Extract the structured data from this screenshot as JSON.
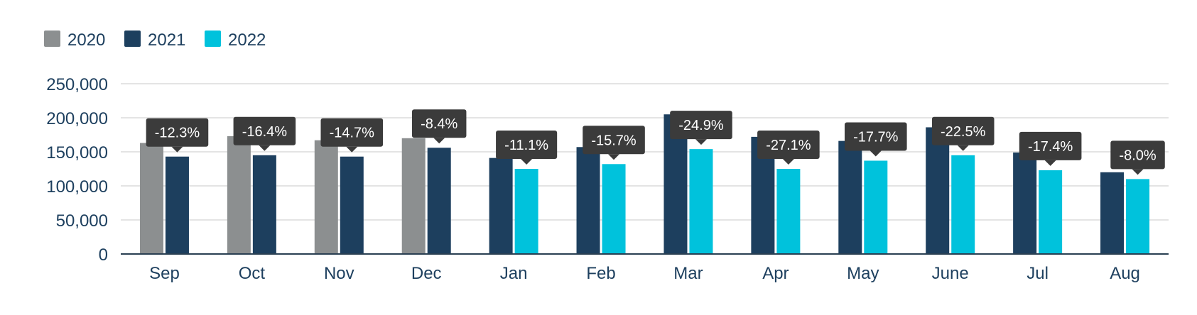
{
  "chart_data": {
    "type": "bar",
    "categories": [
      "Sep",
      "Oct",
      "Nov",
      "Dec",
      "Jan",
      "Feb",
      "Mar",
      "Apr",
      "May",
      "June",
      "Jul",
      "Aug"
    ],
    "series": [
      {
        "name": "2020",
        "color": "#8c8f90",
        "values": [
          163000,
          173000,
          167000,
          170000,
          null,
          null,
          null,
          null,
          null,
          null,
          null,
          null
        ]
      },
      {
        "name": "2021",
        "color": "#1d3f5e",
        "values": [
          143000,
          145000,
          143000,
          156000,
          141000,
          157000,
          205000,
          172000,
          166000,
          186000,
          149000,
          120000
        ]
      },
      {
        "name": "2022",
        "color": "#00c2dc",
        "values": [
          null,
          null,
          null,
          null,
          125000,
          132000,
          154000,
          125000,
          137000,
          145000,
          123000,
          110000
        ]
      }
    ],
    "annotations": [
      "-12.3%",
      "-16.4%",
      "-14.7%",
      "-8.4%",
      "-11.1%",
      "-15.7%",
      "-24.9%",
      "-27.1%",
      "-17.7%",
      "-22.5%",
      "-17.4%",
      "-8.0%"
    ],
    "y_ticks": [
      "0",
      "50,000",
      "100,000",
      "150,000",
      "200,000",
      "250,000"
    ],
    "y_tick_values": [
      0,
      50000,
      100000,
      150000,
      200000,
      250000
    ],
    "ylim": [
      0,
      250000
    ],
    "grid": true,
    "legend_position": "top-left",
    "title": "",
    "xlabel": "",
    "ylabel": ""
  }
}
